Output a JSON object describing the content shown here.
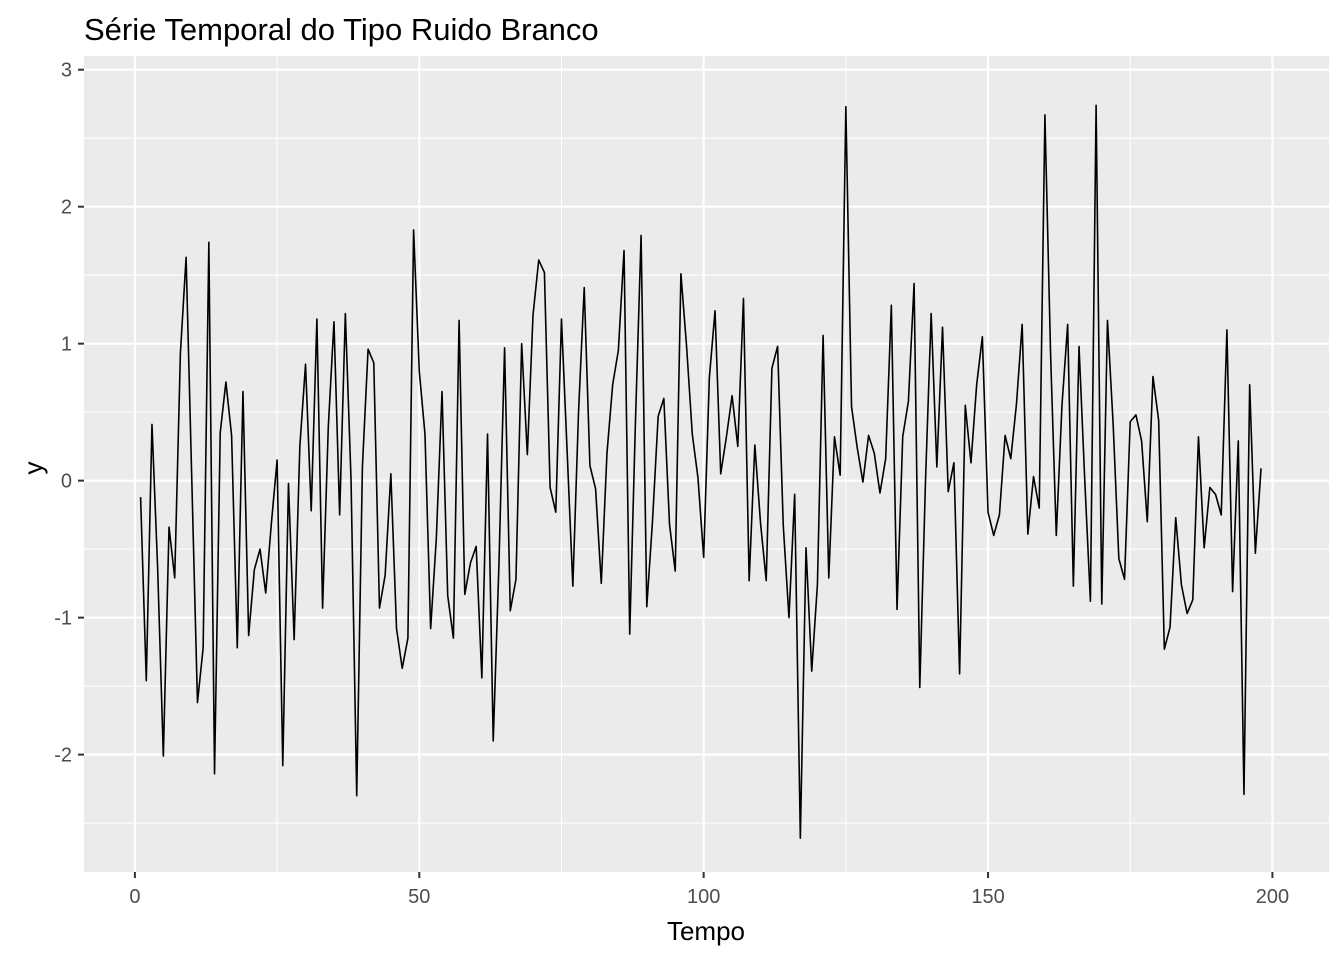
{
  "chart_data": {
    "type": "line",
    "title": "Série Temporal do Tipo Ruido Branco",
    "xlabel": "Tempo",
    "ylabel": "y",
    "xlim": [
      -8.95,
      209.95
    ],
    "ylim": [
      -2.857,
      3.1
    ],
    "x_ticks": [
      0,
      50,
      100,
      150,
      200
    ],
    "y_ticks": [
      -2,
      -1,
      0,
      1,
      2,
      3
    ],
    "x_tick_labels": [
      "0",
      "50",
      "100",
      "150",
      "200"
    ],
    "y_tick_labels": [
      "-2",
      "-1",
      "0",
      "1",
      "2",
      "3"
    ],
    "grid": true,
    "legend": "none",
    "colors": {
      "panel_background": "#ebebeb",
      "grid": "#ffffff",
      "line": "#000000",
      "tick_label": "#4d4d4d"
    },
    "series": [
      {
        "x_start": 1,
        "x_step": 1,
        "color": "#000000",
        "values": [
          -0.12,
          -1.46,
          0.41,
          -0.64,
          -2.01,
          -0.34,
          -0.71,
          0.93,
          1.63,
          0.01,
          -1.62,
          -1.22,
          1.74,
          -2.14,
          0.35,
          0.72,
          0.33,
          -1.22,
          0.65,
          -1.13,
          -0.65,
          -0.5,
          -0.82,
          -0.31,
          0.15,
          -2.08,
          -0.02,
          -1.16,
          0.25,
          0.85,
          -0.22,
          1.18,
          -0.93,
          0.39,
          1.16,
          -0.25,
          1.22,
          0.01,
          -2.3,
          0.1,
          0.96,
          0.86,
          -0.93,
          -0.69,
          0.05,
          -1.08,
          -1.37,
          -1.15,
          1.83,
          0.8,
          0.34,
          -1.08,
          -0.42,
          0.65,
          -0.84,
          -1.15,
          1.17,
          -0.83,
          -0.6,
          -0.48,
          -1.44,
          0.34,
          -1.9,
          -0.62,
          0.97,
          -0.95,
          -0.72,
          1.0,
          0.19,
          1.21,
          1.61,
          1.52,
          -0.05,
          -0.23,
          1.18,
          0.21,
          -0.77,
          0.5,
          1.41,
          0.11,
          -0.06,
          -0.75,
          0.2,
          0.7,
          0.95,
          1.68,
          -1.12,
          0.42,
          1.79,
          -0.92,
          -0.3,
          0.47,
          0.6,
          -0.32,
          -0.66,
          1.51,
          0.98,
          0.34,
          0.02,
          -0.56,
          0.75,
          1.24,
          0.05,
          0.32,
          0.62,
          0.25,
          1.33,
          -0.73,
          0.26,
          -0.31,
          -0.73,
          0.82,
          0.98,
          -0.33,
          -1.0,
          -0.1,
          -2.61,
          -0.49,
          -1.39,
          -0.76,
          1.06,
          -0.71,
          0.32,
          0.04,
          2.73,
          0.54,
          0.24,
          -0.01,
          0.33,
          0.2,
          -0.09,
          0.16,
          1.28,
          -0.94,
          0.32,
          0.58,
          1.44,
          -1.51,
          -0.01,
          1.22,
          0.1,
          1.12,
          -0.08,
          0.13,
          -1.41,
          0.55,
          0.13,
          0.7,
          1.05,
          -0.23,
          -0.4,
          -0.25,
          0.33,
          0.16,
          0.56,
          1.14,
          -0.39,
          0.03,
          -0.2,
          2.67,
          0.92,
          -0.4,
          0.55,
          1.14,
          -0.77,
          0.98,
          0.01,
          -0.88,
          2.74,
          -0.9,
          1.17,
          0.41,
          -0.57,
          -0.72,
          0.43,
          0.48,
          0.29,
          -0.3,
          0.76,
          0.44,
          -1.23,
          -1.07,
          -0.27,
          -0.76,
          -0.97,
          -0.87,
          0.32,
          -0.49,
          -0.05,
          -0.1,
          -0.25,
          1.1,
          -0.81,
          0.29,
          -2.29,
          0.7,
          -0.53,
          0.09
        ]
      }
    ]
  }
}
